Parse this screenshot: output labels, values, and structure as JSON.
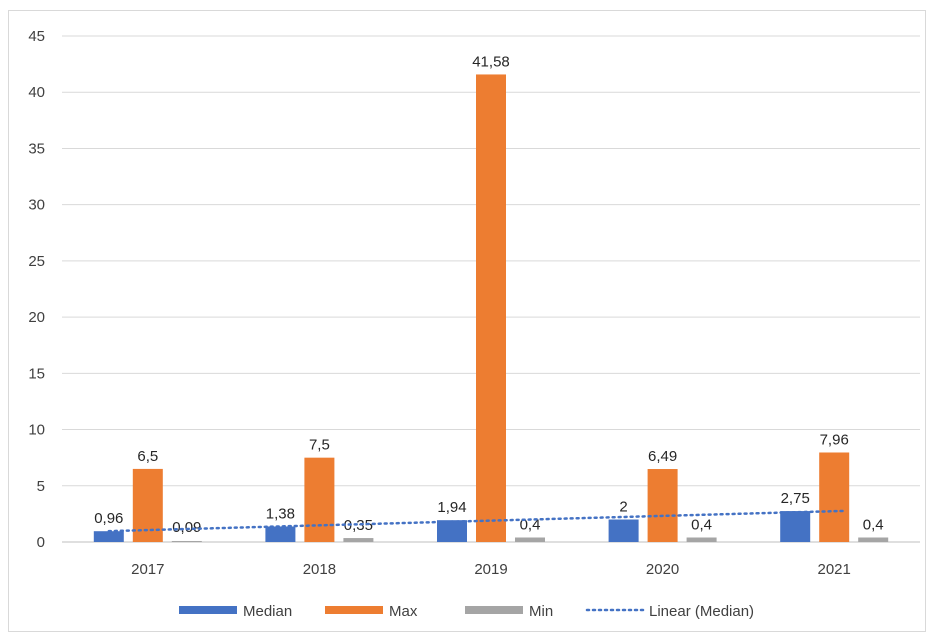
{
  "chart_data": {
    "type": "bar",
    "categories": [
      "2017",
      "2018",
      "2019",
      "2020",
      "2021"
    ],
    "series": [
      {
        "name": "Median",
        "color": "#4472c4",
        "values": [
          0.96,
          1.38,
          1.94,
          2,
          2.75
        ],
        "labels": [
          "0,96",
          "1,38",
          "1,94",
          "2",
          "2,75"
        ]
      },
      {
        "name": "Max",
        "color": "#ed7d31",
        "values": [
          6.5,
          7.5,
          41.58,
          6.49,
          7.96
        ],
        "labels": [
          "6,5",
          "7,5",
          "41,58",
          "6,49",
          "7,96"
        ]
      },
      {
        "name": "Min",
        "color": "#a5a5a5",
        "values": [
          0.09,
          0.35,
          0.4,
          0.4,
          0.4
        ],
        "labels": [
          "0,09",
          "0,35",
          "0,4",
          "0,4",
          "0,4"
        ]
      }
    ],
    "trendline": {
      "name": "Linear (Median)",
      "type": "linear",
      "of_series": "Median",
      "color": "#4472c4",
      "style": "dotted"
    },
    "ylim": [
      0,
      45
    ],
    "yticks": [
      "0",
      "5",
      "10",
      "15",
      "20",
      "25",
      "30",
      "35",
      "40",
      "45"
    ],
    "grid": true,
    "legend_position": "bottom",
    "title": "",
    "xlabel": "",
    "ylabel": ""
  }
}
